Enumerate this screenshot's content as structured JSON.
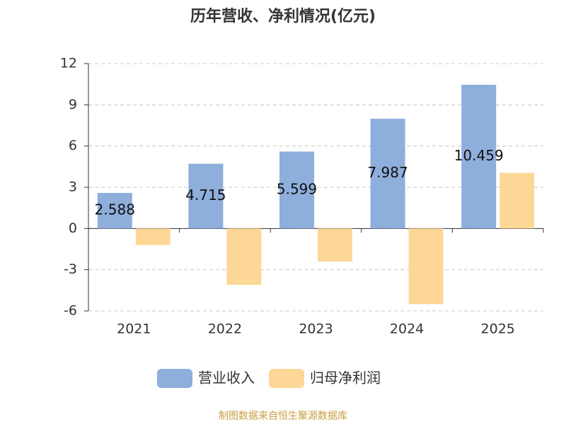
{
  "chart_data": {
    "type": "bar",
    "title": "历年营收、净利情况(亿元)",
    "categories": [
      "2021",
      "2022",
      "2023",
      "2024",
      "2025"
    ],
    "series": [
      {
        "name": "营业收入",
        "color": "#8eaedb",
        "values": [
          2.588,
          4.715,
          5.599,
          7.987,
          10.459
        ],
        "show_value_labels": true
      },
      {
        "name": "归母净利润",
        "color": "#fdd796",
        "values": [
          -1.2,
          -4.1,
          -2.4,
          -5.5,
          4.05
        ],
        "show_value_labels": false
      }
    ],
    "ylim": [
      -6,
      12
    ],
    "yticks": [
      -6,
      -3,
      0,
      3,
      6,
      9,
      12
    ],
    "grid": true,
    "source": "制图数据来自恒生聚源数据库"
  }
}
